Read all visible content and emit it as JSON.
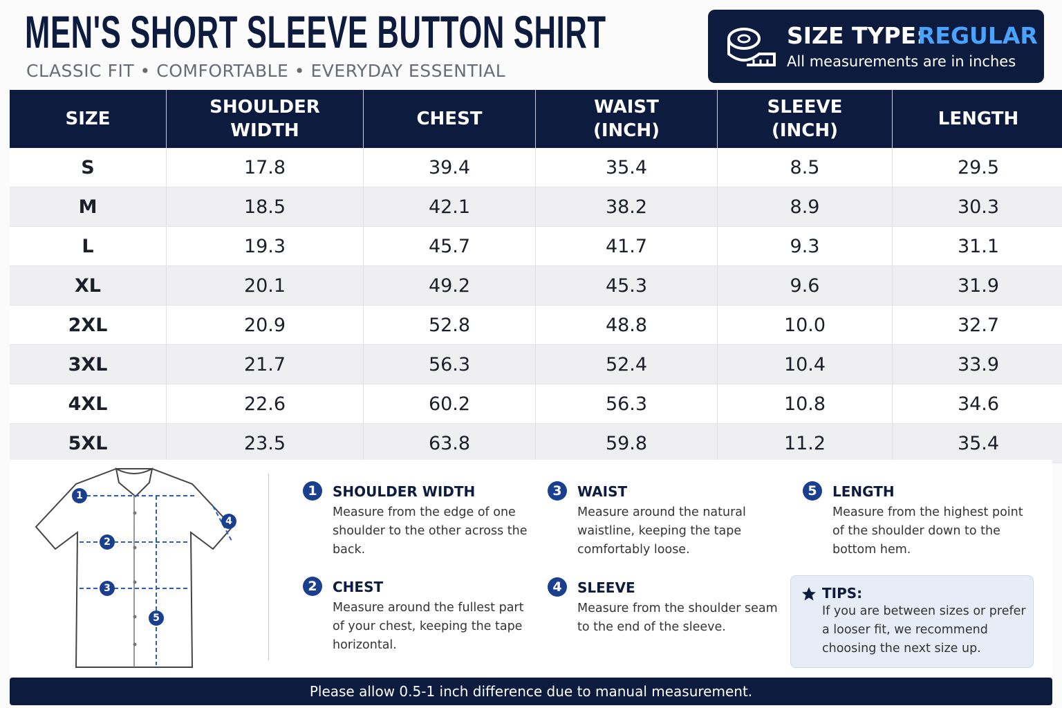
{
  "header": {
    "title": "MEN'S SHORT SLEEVE BUTTON SHIRT",
    "subtitle": "CLASSIC FIT • COMFORTABLE • EVERYDAY ESSENTIAL"
  },
  "size_type": {
    "label": "SIZE TYPE:",
    "value": "REGULAR",
    "note": "All measurements are in inches"
  },
  "table": {
    "columns": [
      "SIZE",
      "SHOULDER WIDTH",
      "CHEST",
      "WAIST (INCH)",
      "SLEEVE (INCH)",
      "LENGTH"
    ],
    "rows": [
      [
        "S",
        "17.8",
        "39.4",
        "35.4",
        "8.5",
        "29.5"
      ],
      [
        "M",
        "18.5",
        "42.1",
        "38.2",
        "8.9",
        "30.3"
      ],
      [
        "L",
        "19.3",
        "45.7",
        "41.7",
        "9.3",
        "31.1"
      ],
      [
        "XL",
        "20.1",
        "49.2",
        "45.3",
        "9.6",
        "31.9"
      ],
      [
        "2XL",
        "20.9",
        "52.8",
        "48.8",
        "10.0",
        "32.7"
      ],
      [
        "3XL",
        "21.7",
        "56.3",
        "52.4",
        "10.4",
        "33.9"
      ],
      [
        "4XL",
        "22.6",
        "60.2",
        "56.3",
        "10.8",
        "34.6"
      ],
      [
        "5XL",
        "23.5",
        "63.8",
        "59.8",
        "11.2",
        "35.4"
      ]
    ]
  },
  "guide": {
    "items": [
      {
        "number": "1",
        "title": "SHOULDER WIDTH",
        "text": "Measure from the edge of one shoulder to the other across the back."
      },
      {
        "number": "2",
        "title": "CHEST",
        "text": "Measure around the fullest part of your chest, keeping the tape horizontal."
      },
      {
        "number": "3",
        "title": "WAIST",
        "text": "Measure around the natural waistline, keeping the tape comfortably loose."
      },
      {
        "number": "4",
        "title": "SLEEVE",
        "text": "Measure from the shoulder seam to the end of the sleeve."
      },
      {
        "number": "5",
        "title": "LENGTH",
        "text": "Measure from the highest point of the shoulder down to the bottom hem."
      }
    ]
  },
  "tips": {
    "title": "TIPS:",
    "text": "If you are between sizes or prefer a looser fit, we recommend choosing the next size up."
  },
  "footer": {
    "note": "Please allow 0.5-1 inch difference due to manual measurement."
  }
}
